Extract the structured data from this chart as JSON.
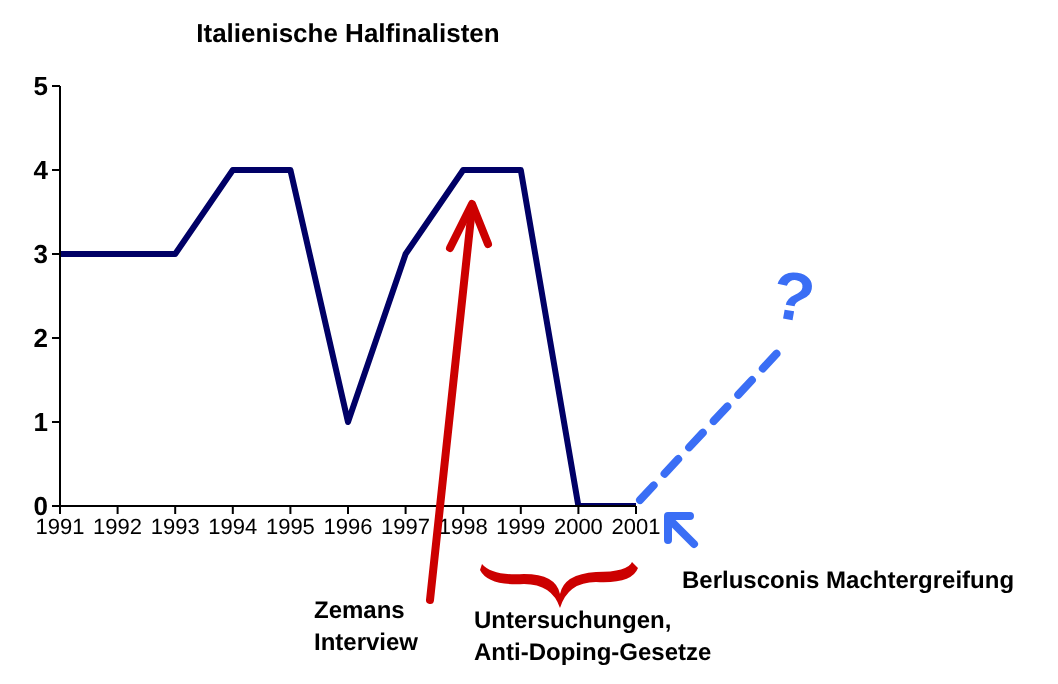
{
  "chart_data": {
    "type": "line",
    "title": "Italienische Halfinalisten",
    "categories": [
      "1991",
      "1992",
      "1993",
      "1994",
      "1995",
      "1996",
      "1997",
      "1998",
      "1999",
      "2000",
      "2001"
    ],
    "series": [
      {
        "color": "#000066",
        "values": [
          3,
          3,
          3,
          4,
          4,
          1,
          3,
          4,
          4,
          0,
          0
        ]
      }
    ],
    "ylim": [
      0,
      5
    ],
    "yticks": [
      0,
      1,
      2,
      3,
      4,
      5
    ],
    "grid": false,
    "legend": false,
    "marker": "none",
    "line_style": "solid",
    "annotations": [
      "Zemans Interview",
      "Untersuchungen, Anti-Doping-Gesetze",
      "Berlusconis Machtergreifung",
      "?"
    ]
  }
}
